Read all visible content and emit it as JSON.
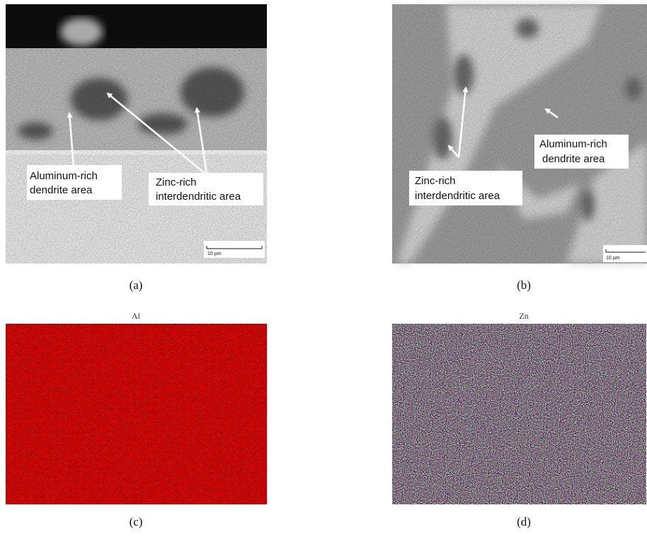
{
  "panels": [
    {
      "caption": "(a)",
      "annotations": [
        [
          "Aluminum-rich",
          "dendrite area"
        ],
        [
          "Zinc-rich",
          "interdendritic area"
        ]
      ],
      "scale_bar": "10 µm"
    },
    {
      "caption": "(b)",
      "annotations": [
        [
          "Aluminum-rich",
          "dendrite area"
        ],
        [
          "Zinc-rich",
          "interdendritic area"
        ]
      ],
      "scale_bar": "10 µm"
    },
    {
      "caption": "(c)",
      "title": "Al"
    },
    {
      "caption": "(d)",
      "title": "Zn"
    }
  ]
}
